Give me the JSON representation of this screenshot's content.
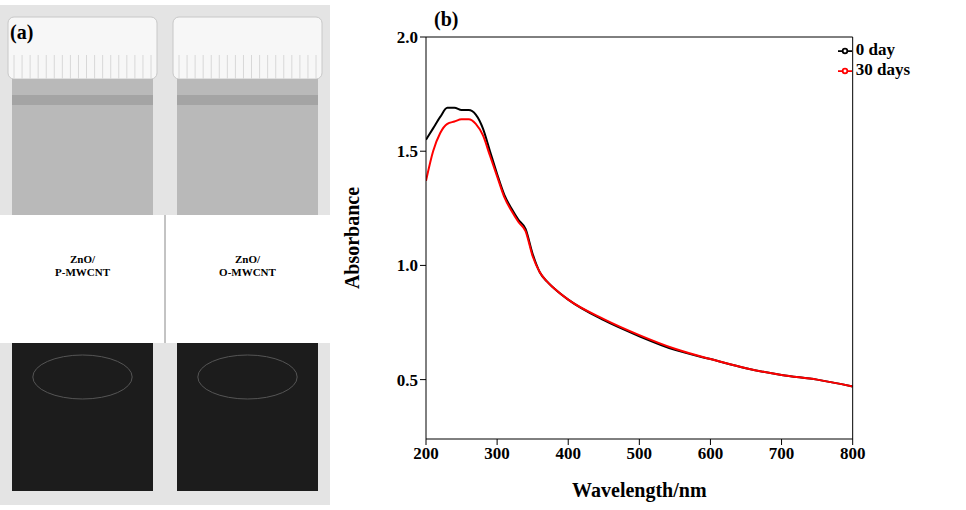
{
  "panel_a": {
    "letter": "(a)",
    "vials": [
      {
        "lines": [
          "ZnO/",
          "P-MWCNT"
        ]
      },
      {
        "lines": [
          "ZnO/",
          "O-MWCNT"
        ]
      }
    ]
  },
  "panel_b": {
    "letter": "(b)"
  },
  "chart_data": {
    "type": "line",
    "x_label": "Wavelength/nm",
    "y_label": "Absorbance",
    "x": [
      200,
      210,
      220,
      230,
      240,
      250,
      260,
      270,
      280,
      290,
      300,
      310,
      320,
      330,
      340,
      350,
      360,
      370,
      380,
      400,
      450,
      500,
      550,
      600,
      650,
      700,
      750,
      800
    ],
    "series": [
      {
        "name": "0 day",
        "color": "#000000",
        "line_style": "solid",
        "values": [
          1.55,
          1.6,
          1.65,
          1.69,
          1.69,
          1.68,
          1.68,
          1.66,
          1.6,
          1.5,
          1.4,
          1.31,
          1.25,
          1.2,
          1.16,
          1.05,
          0.97,
          0.93,
          0.9,
          0.85,
          0.76,
          0.69,
          0.63,
          0.59,
          0.55,
          0.52,
          0.5,
          0.47
        ]
      },
      {
        "name": "30 days",
        "color": "#ff0000",
        "line_style": "solid",
        "values": [
          1.37,
          1.5,
          1.58,
          1.62,
          1.63,
          1.64,
          1.64,
          1.62,
          1.57,
          1.48,
          1.39,
          1.3,
          1.24,
          1.19,
          1.15,
          1.04,
          0.97,
          0.93,
          0.9,
          0.85,
          0.765,
          0.695,
          0.635,
          0.59,
          0.55,
          0.52,
          0.5,
          0.47
        ]
      }
    ],
    "xlim": [
      200,
      800
    ],
    "xticks": [
      200,
      300,
      400,
      500,
      600,
      700,
      800
    ],
    "ylim": [
      0.24,
      2.0
    ],
    "yticks": [
      0.5,
      {
        "value": 1.0,
        "label": "1.0"
      },
      1.5,
      {
        "value": 2.0,
        "label": "2.0"
      }
    ],
    "legend": "upper right",
    "grid": false
  }
}
